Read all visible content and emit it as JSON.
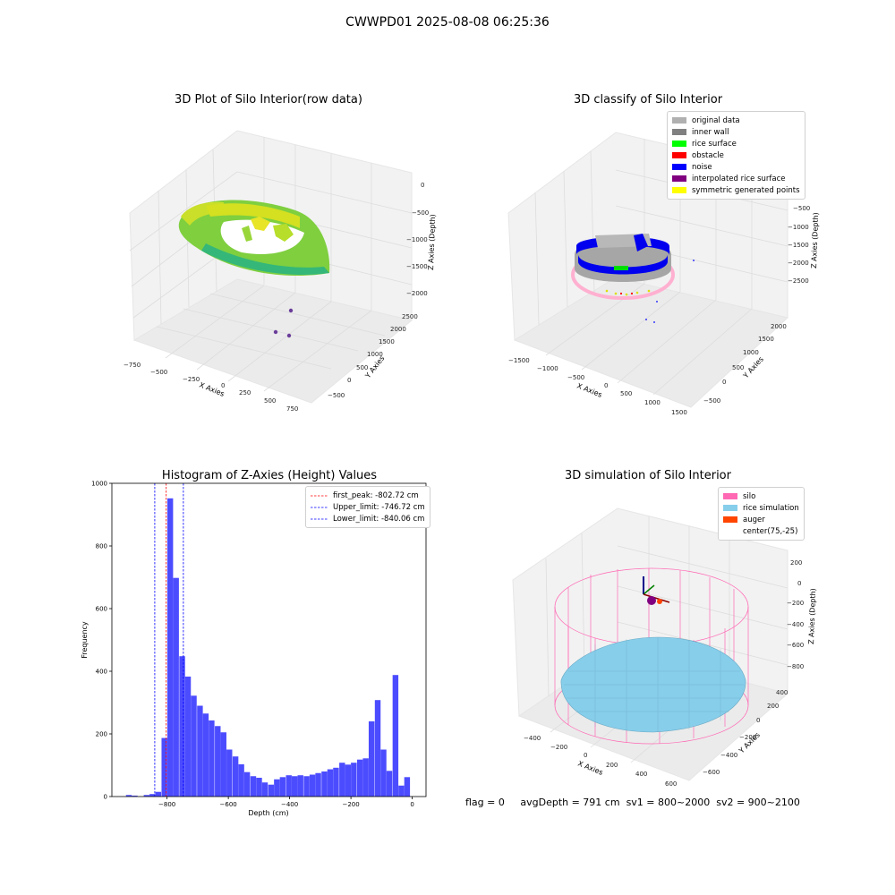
{
  "suptitle": "CWWPD01 2025-08-08 06:25:36",
  "footer": {
    "flag": "flag = 0",
    "avg": "avgDepth = 791 cm",
    "sv1": "sv1 = 800~2000",
    "sv2": "sv2 = 900~2100"
  },
  "chart_data": [
    {
      "type": "scatter",
      "subtype": "3d-scatter",
      "title": "3D Plot of Silo Interior(row data)",
      "xlabel": "X Axies",
      "ylabel": "Y Axies",
      "zlabel": "Z Axies (Depth)",
      "x_ticks": [
        "−750",
        "−500",
        "−250",
        "0",
        "250",
        "500",
        "750"
      ],
      "y_ticks": [
        "−500",
        "0",
        "500",
        "1000",
        "1500",
        "2000",
        "2500"
      ],
      "z_ticks": [
        "0",
        "−500",
        "−1000",
        "−1500",
        "−2000"
      ],
      "colormap": "viridis"
    },
    {
      "type": "scatter",
      "subtype": "3d-scatter",
      "title": "3D classify of Silo Interior",
      "xlabel": "X Axies",
      "ylabel": "Y Axies",
      "zlabel": "Z Axies (Depth)",
      "x_ticks": [
        "−1500",
        "−1000",
        "−500",
        "0",
        "500",
        "1000",
        "1500"
      ],
      "y_ticks": [
        "−500",
        "0",
        "500",
        "1000",
        "1500",
        "2000"
      ],
      "z_ticks": [
        "0",
        "−500",
        "−1000",
        "−1500",
        "−2000",
        "−2500"
      ],
      "legend": [
        {
          "label": "original data",
          "color": "#b0b0b0"
        },
        {
          "label": "inner wall",
          "color": "#808080"
        },
        {
          "label": "rice surface",
          "color": "#00ff00"
        },
        {
          "label": "obstacle",
          "color": "#ff0000"
        },
        {
          "label": "noise",
          "color": "#0000ff"
        },
        {
          "label": "interpolated rice surface",
          "color": "#800080"
        },
        {
          "label": "symmetric generated points",
          "color": "#ffff00"
        }
      ],
      "legend_position": "top-right"
    },
    {
      "type": "bar",
      "subtype": "histogram",
      "title": "Histogram of Z-Axies (Height) Values",
      "xlabel": "Depth (cm)",
      "ylabel": "Frequency",
      "xlim": [
        -980,
        45
      ],
      "ylim": [
        0,
        1000
      ],
      "x_ticks": [
        -800,
        -600,
        -400,
        -200,
        0
      ],
      "y_ticks": [
        0,
        200,
        400,
        600,
        800,
        1000
      ],
      "bin_width": 19.3,
      "bin_starts": [
        -934,
        -915,
        -895,
        -876,
        -857,
        -838,
        -818,
        -799,
        -780,
        -760,
        -741,
        -722,
        -702,
        -683,
        -664,
        -644,
        -625,
        -606,
        -586,
        -567,
        -548,
        -528,
        -509,
        -490,
        -470,
        -451,
        -432,
        -412,
        -393,
        -374,
        -354,
        -335,
        -316,
        -296,
        -277,
        -258,
        -238,
        -219,
        -200,
        -180,
        -161,
        -142,
        -122,
        -103,
        -84,
        -64,
        -45,
        -26,
        -6
      ],
      "values": [
        5,
        3,
        0,
        5,
        8,
        15,
        187,
        952,
        698,
        448,
        383,
        322,
        290,
        265,
        243,
        225,
        205,
        150,
        128,
        103,
        78,
        65,
        60,
        45,
        38,
        55,
        62,
        68,
        65,
        68,
        65,
        70,
        75,
        80,
        87,
        92,
        108,
        102,
        108,
        118,
        122,
        240,
        308,
        150,
        82,
        388,
        35,
        62,
        0
      ],
      "bar_color": "#0000ff",
      "vlines": [
        {
          "label": "first_peak: -802.72 cm",
          "x": -802.72,
          "color": "#ff0000"
        },
        {
          "label": "Upper_limit: -746.72 cm",
          "x": -746.72,
          "color": "#0000ff"
        },
        {
          "label": "Lower_limit: -840.06 cm",
          "x": -840.06,
          "color": "#0000ff"
        }
      ],
      "legend_position": "top-right"
    },
    {
      "type": "scatter",
      "subtype": "3d-wireframe-surface",
      "title": "3D simulation of Silo Interior",
      "xlabel": "X Axies",
      "ylabel": "Y Axies",
      "zlabel": "Z Axies (Depth)",
      "x_ticks": [
        "−400",
        "−200",
        "0",
        "200",
        "400",
        "600"
      ],
      "y_ticks": [
        "−600",
        "−400",
        "−200",
        "0",
        "200",
        "400"
      ],
      "z_ticks": [
        "200",
        "0",
        "−200",
        "−400",
        "−600",
        "−800"
      ],
      "legend": [
        {
          "label": "silo",
          "color": "#ff69b4"
        },
        {
          "label": "rice simulation",
          "color": "#87ceeb"
        },
        {
          "label": "auger",
          "color": "#ff4500"
        },
        {
          "label": "center(75,-25)",
          "color": "#ffffff"
        }
      ],
      "legend_position": "top-right"
    }
  ]
}
